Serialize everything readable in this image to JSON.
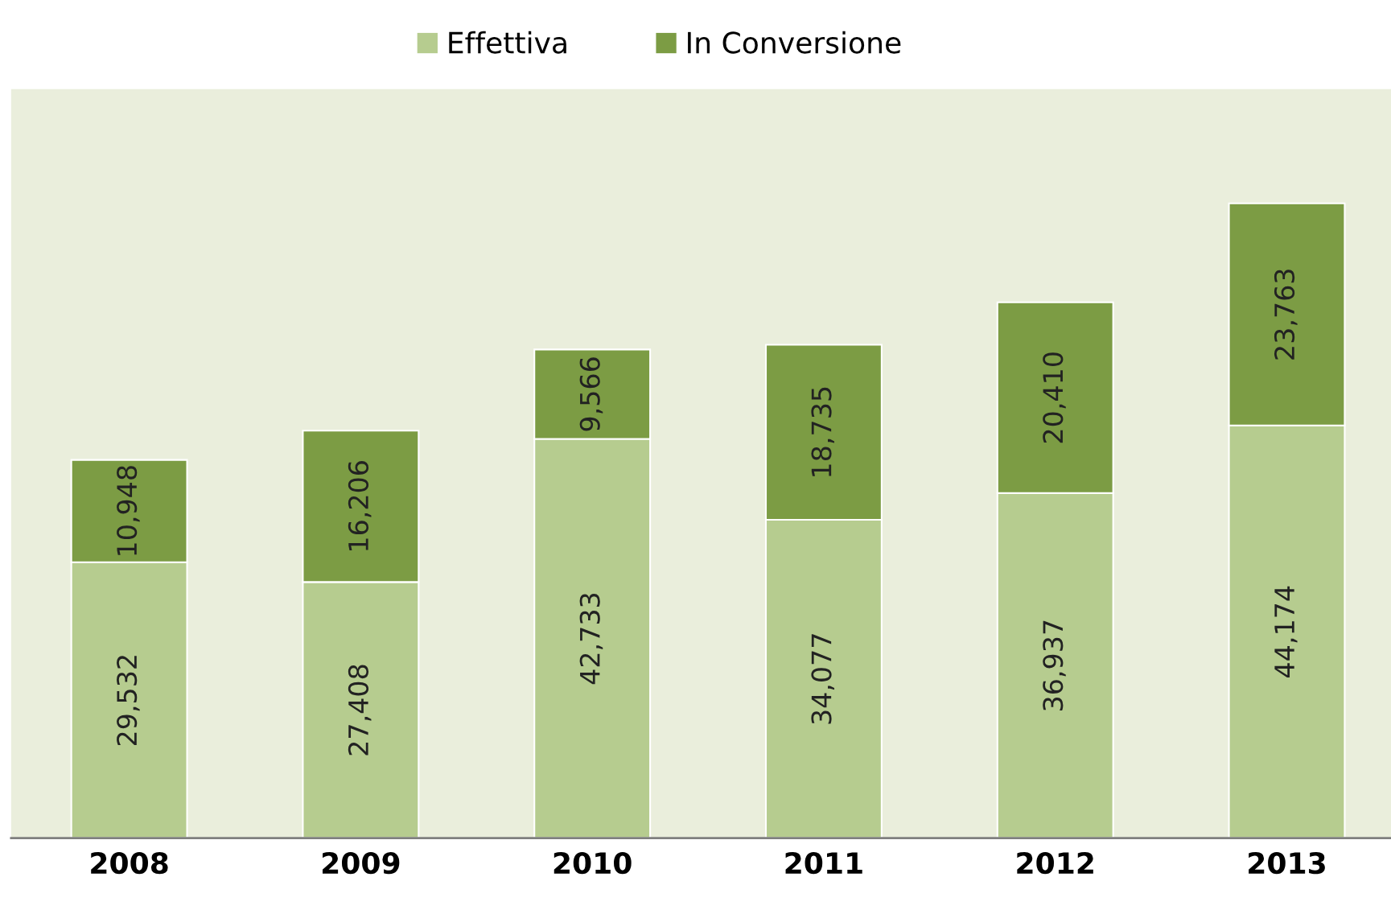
{
  "chart_data": {
    "type": "bar",
    "stacked": true,
    "categories": [
      "2008",
      "2009",
      "2010",
      "2011",
      "2012",
      "2013"
    ],
    "series": [
      {
        "name": "Effettiva",
        "color": "#b6cc8f",
        "values": [
          29532,
          27408,
          42733,
          34077,
          36937,
          44174
        ],
        "value_labels": [
          "29,532",
          "27,408",
          "42,733",
          "34,077",
          "36,937",
          "44,174"
        ]
      },
      {
        "name": "In Conversione",
        "color": "#7c9c44",
        "values": [
          10948,
          16206,
          9566,
          18735,
          20410,
          23763
        ],
        "value_labels": [
          "10,948",
          "16,206",
          "9,566",
          "18,735",
          "20,410",
          "23,763"
        ]
      }
    ],
    "legend": "top",
    "tick_labels": "x"
  }
}
